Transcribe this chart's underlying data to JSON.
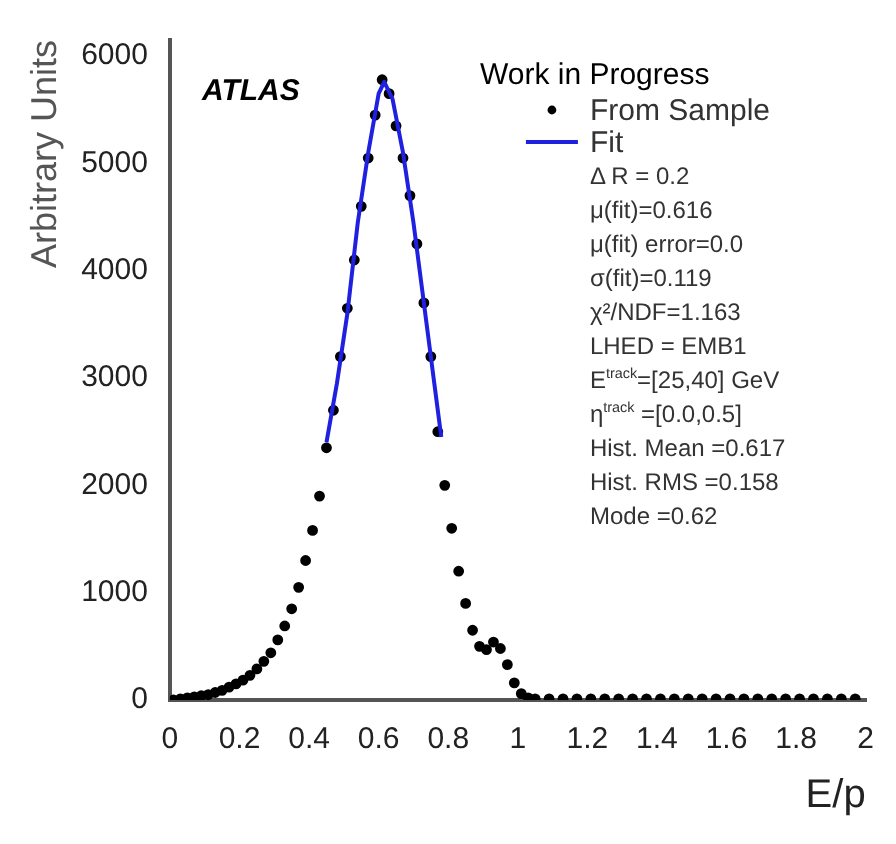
{
  "chart_data": {
    "type": "scatter",
    "xlabel": "E/p",
    "ylabel": "Arbitrary Units",
    "xlim": [
      0,
      2
    ],
    "ylim": [
      0,
      6150
    ],
    "xticks": [
      0,
      0.2,
      0.4,
      0.6,
      0.8,
      1,
      1.2,
      1.4,
      1.6,
      1.8,
      2
    ],
    "yticks": [
      0,
      1000,
      2000,
      3000,
      4000,
      5000,
      6000
    ],
    "grid": false,
    "legend": "top right",
    "series": [
      {
        "name": "From Sample",
        "type": "scatter",
        "marker": "circle",
        "color": "#000000",
        "x": [
          0.01,
          0.03,
          0.05,
          0.07,
          0.09,
          0.11,
          0.13,
          0.15,
          0.17,
          0.19,
          0.21,
          0.23,
          0.25,
          0.27,
          0.29,
          0.31,
          0.33,
          0.35,
          0.37,
          0.39,
          0.41,
          0.43,
          0.45,
          0.47,
          0.49,
          0.51,
          0.53,
          0.55,
          0.57,
          0.59,
          0.61,
          0.63,
          0.65,
          0.67,
          0.69,
          0.71,
          0.73,
          0.75,
          0.77,
          0.79,
          0.81,
          0.83,
          0.85,
          0.87,
          0.89,
          0.91,
          0.93,
          0.95,
          0.97,
          0.99,
          1.01,
          1.03,
          1.05,
          1.09,
          1.13,
          1.17,
          1.21,
          1.25,
          1.29,
          1.33,
          1.37,
          1.41,
          1.45,
          1.49,
          1.53,
          1.57,
          1.61,
          1.65,
          1.69,
          1.73,
          1.77,
          1.81,
          1.85,
          1.89,
          1.93,
          1.97
        ],
        "values": [
          0,
          10,
          20,
          30,
          40,
          50,
          70,
          90,
          120,
          150,
          185,
          230,
          290,
          360,
          440,
          560,
          690,
          850,
          1050,
          1300,
          1580,
          1900,
          2350,
          2700,
          3200,
          3650,
          4100,
          4600,
          5050,
          5450,
          5780,
          5650,
          5350,
          5050,
          4700,
          4250,
          3700,
          3200,
          2500,
          2000,
          1600,
          1200,
          900,
          650,
          500,
          470,
          540,
          480,
          330,
          160,
          60,
          20,
          10,
          10,
          10,
          10,
          10,
          10,
          10,
          10,
          10,
          10,
          10,
          10,
          10,
          10,
          10,
          10,
          10,
          10,
          10,
          10,
          10,
          10,
          10,
          10
        ]
      },
      {
        "name": "Fit",
        "type": "line",
        "marker": "none",
        "line_style": "solid",
        "color": "#2020e0",
        "x": [
          0.45,
          0.48,
          0.51,
          0.54,
          0.57,
          0.6,
          0.616,
          0.64,
          0.67,
          0.7,
          0.73,
          0.76,
          0.78
        ],
        "values": [
          2400,
          2950,
          3600,
          4450,
          5100,
          5650,
          5760,
          5600,
          5100,
          4450,
          3700,
          2950,
          2450
        ]
      }
    ],
    "annotations": [
      "ATLAS",
      "Work in Progress",
      "Δ R = 0.2",
      "μ(fit)=0.616",
      "μ(fit) error=0.0",
      "σ(fit)=0.119",
      "χ²/NDF=1.163",
      "LHED = EMB1",
      "E$^{track}$=[25,40] GeV",
      "η$^{track}$ =[0.0,0.5]",
      "Hist. Mean =0.617",
      "Hist. RMS =0.158",
      "Mode =0.62"
    ]
  }
}
